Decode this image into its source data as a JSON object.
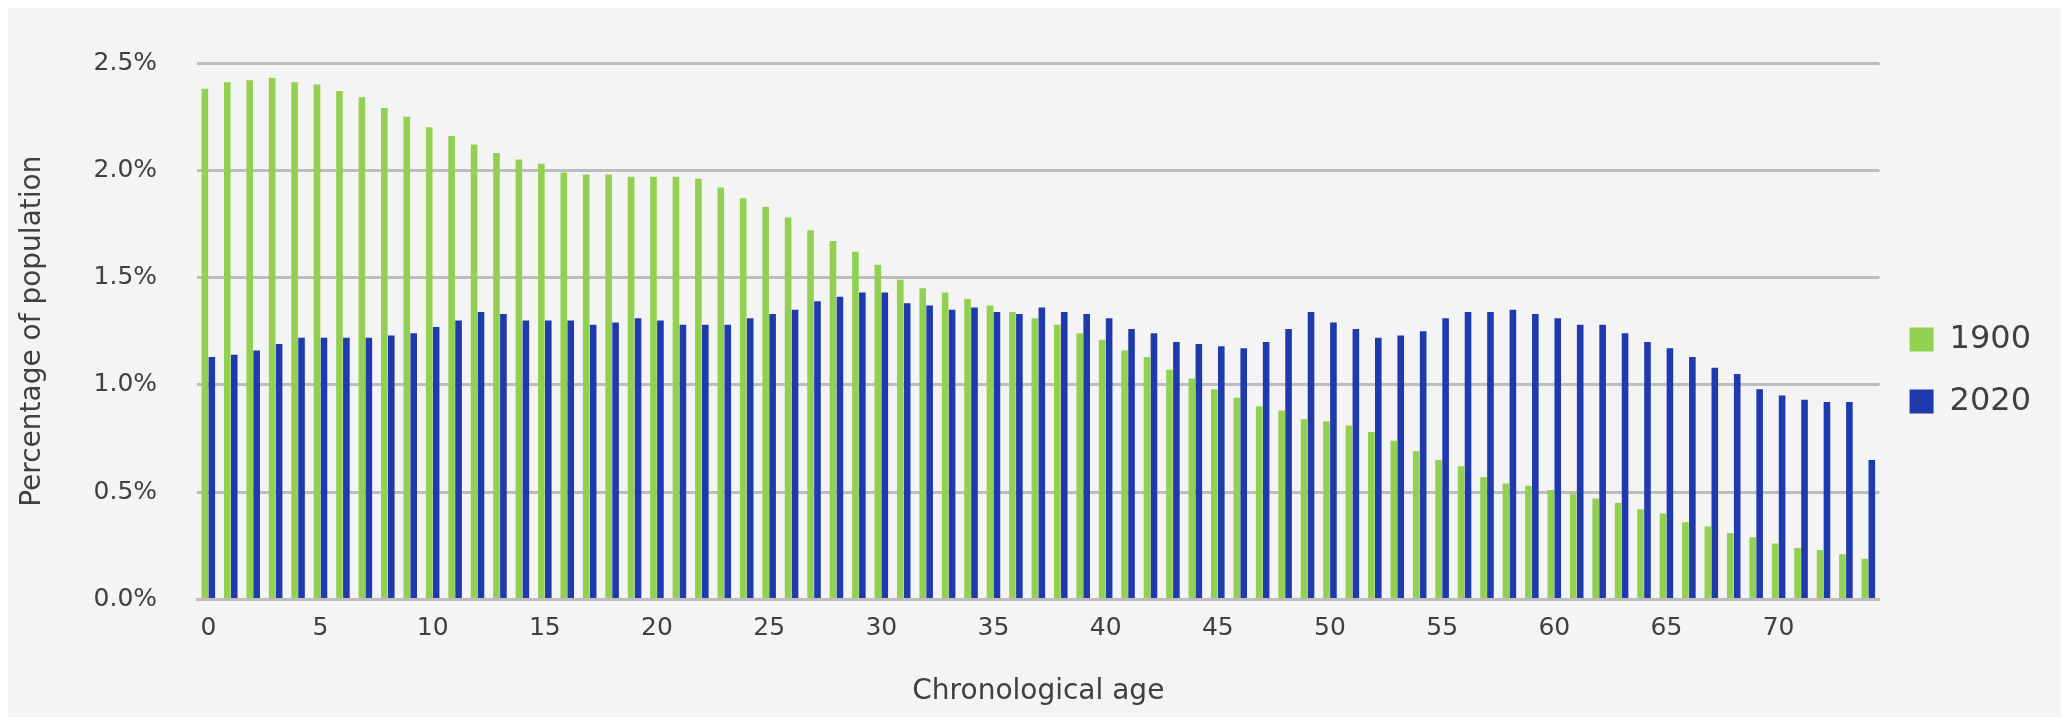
{
  "chart_data": {
    "type": "bar",
    "xlabel": "Chronological age",
    "ylabel": "Percentage of population",
    "categories": [
      "0",
      null,
      null,
      null,
      null,
      "5",
      null,
      null,
      null,
      null,
      "10",
      null,
      null,
      null,
      null,
      "15",
      null,
      null,
      null,
      null,
      "20",
      null,
      null,
      null,
      null,
      "25",
      null,
      null,
      null,
      null,
      "30",
      null,
      null,
      null,
      null,
      "35",
      null,
      null,
      null,
      null,
      "40",
      null,
      null,
      null,
      null,
      "45",
      null,
      null,
      null,
      null,
      "50",
      null,
      null,
      null,
      null,
      "55",
      null,
      null,
      null,
      null,
      "60",
      null,
      null,
      null,
      null,
      "65",
      null,
      null,
      null,
      null,
      "70",
      null,
      null,
      null,
      null
    ],
    "series": [
      {
        "name": "1900",
        "color": "#92d050",
        "values": [
          2.38,
          2.41,
          2.42,
          2.43,
          2.41,
          2.4,
          2.37,
          2.34,
          2.29,
          2.25,
          2.2,
          2.16,
          2.12,
          2.08,
          2.05,
          2.03,
          1.99,
          1.98,
          1.98,
          1.97,
          1.97,
          1.97,
          1.96,
          1.92,
          1.87,
          1.83,
          1.78,
          1.72,
          1.67,
          1.62,
          1.56,
          1.49,
          1.45,
          1.43,
          1.4,
          1.37,
          1.34,
          1.31,
          1.28,
          1.24,
          1.21,
          1.16,
          1.13,
          1.07,
          1.03,
          0.98,
          0.94,
          0.9,
          0.88,
          0.84,
          0.83,
          0.81,
          0.78,
          0.74,
          0.69,
          0.65,
          0.62,
          0.57,
          0.54,
          0.53,
          0.51,
          0.49,
          0.47,
          0.45,
          0.42,
          0.4,
          0.36,
          0.34,
          0.31,
          0.29,
          0.26,
          0.24,
          0.23,
          0.21,
          0.19
        ]
      },
      {
        "name": "2020",
        "color": "#1f3aad",
        "values": [
          1.13,
          1.14,
          1.16,
          1.19,
          1.22,
          1.22,
          1.22,
          1.22,
          1.23,
          1.24,
          1.27,
          1.3,
          1.34,
          1.33,
          1.3,
          1.3,
          1.3,
          1.28,
          1.29,
          1.31,
          1.3,
          1.28,
          1.28,
          1.28,
          1.31,
          1.33,
          1.35,
          1.39,
          1.41,
          1.43,
          1.43,
          1.38,
          1.37,
          1.35,
          1.36,
          1.34,
          1.33,
          1.36,
          1.34,
          1.33,
          1.31,
          1.26,
          1.24,
          1.2,
          1.19,
          1.18,
          1.17,
          1.2,
          1.26,
          1.34,
          1.29,
          1.26,
          1.22,
          1.23,
          1.25,
          1.31,
          1.34,
          1.34,
          1.35,
          1.33,
          1.31,
          1.28,
          1.28,
          1.24,
          1.2,
          1.17,
          1.13,
          1.08,
          1.05,
          0.98,
          0.95,
          0.93,
          0.92,
          0.92,
          0.65
        ]
      }
    ],
    "ylim": [
      0,
      2.5
    ],
    "yticks": [
      {
        "value": 0,
        "label": "0.0%"
      },
      {
        "value": 0.5,
        "label": "0.5%"
      },
      {
        "value": 1,
        "label": "1.0%"
      },
      {
        "value": 1.5,
        "label": "1.5%"
      },
      {
        "value": 2,
        "label": "2.0%"
      },
      {
        "value": 2.5,
        "label": "2.5%"
      }
    ],
    "grid": "y",
    "legend": "right"
  }
}
